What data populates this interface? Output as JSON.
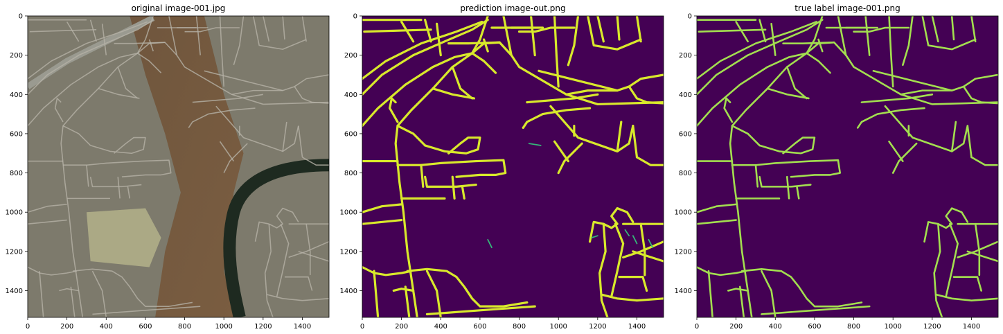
{
  "figure": {
    "panels": [
      {
        "title": "original image-001.jpg",
        "kind": "aerial-photo"
      },
      {
        "title": "prediction image-out.png",
        "kind": "road-mask-prediction"
      },
      {
        "title": "true label image-001.png",
        "kind": "road-mask-label"
      }
    ],
    "colors": {
      "mask_background": "#440154",
      "prediction_road": "#d9e92b",
      "label_road": "#a3df4f",
      "prediction_fragment": "#35b779",
      "photo_urban": "#7d7a6c",
      "photo_forest": "#6e4e32",
      "photo_river": "#1e2a20",
      "photo_field": "#b3b189"
    }
  },
  "chart_data": [
    {
      "type": "heatmap",
      "title": "original image-001.jpg",
      "xlim": [
        0,
        1536
      ],
      "ylim": [
        1536,
        0
      ],
      "xticks": [
        0,
        200,
        400,
        600,
        800,
        1000,
        1200,
        1400
      ],
      "yticks": [
        0,
        200,
        400,
        600,
        800,
        1000,
        1200,
        1400
      ],
      "grid": false
    },
    {
      "type": "heatmap",
      "title": "prediction image-out.png",
      "xlim": [
        0,
        1536
      ],
      "ylim": [
        1536,
        0
      ],
      "xticks": [
        0,
        200,
        400,
        600,
        800,
        1000,
        1200,
        1400
      ],
      "yticks": [
        0,
        200,
        400,
        600,
        800,
        1000,
        1200,
        1400
      ],
      "grid": false
    },
    {
      "type": "heatmap",
      "title": "true label image-001.png",
      "xlim": [
        0,
        1536
      ],
      "ylim": [
        1536,
        0
      ],
      "xticks": [
        0,
        200,
        400,
        600,
        800,
        1000,
        1200,
        1400
      ],
      "yticks": [
        0,
        200,
        400,
        600,
        800,
        1000,
        1200,
        1400
      ],
      "grid": false
    }
  ]
}
